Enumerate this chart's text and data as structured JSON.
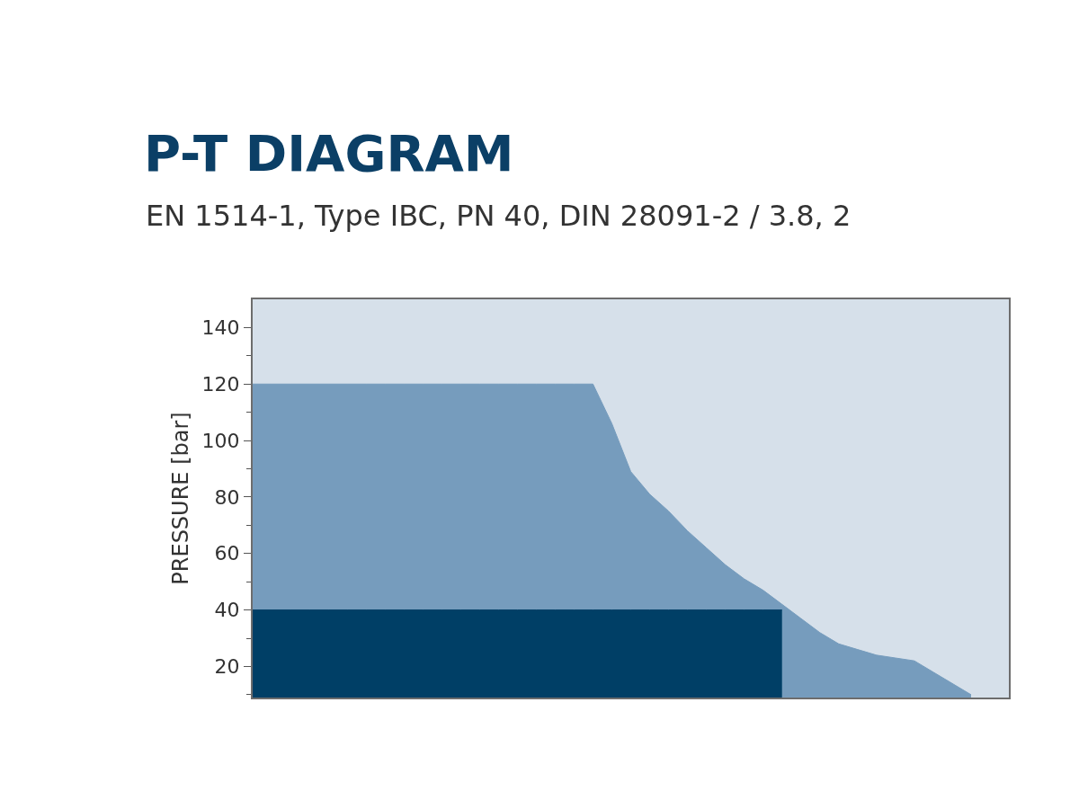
{
  "chart_data": {
    "type": "area",
    "title": "P-T DIAGRAM",
    "subtitle": "EN 1514-1, Type IBC, PN 40, DIN 28091-2 / 3.8, 2",
    "ylabel": "PRESSURE [bar]",
    "categories": [
      null,
      null,
      null,
      null,
      null,
      null,
      null,
      null,
      null,
      null,
      null,
      null,
      null,
      null,
      null,
      null,
      null,
      null,
      null,
      null,
      null,
      null,
      null,
      null,
      null,
      null,
      null,
      null,
      null,
      null,
      null,
      null,
      null,
      null,
      null,
      null,
      null,
      null,
      null,
      null,
      null
    ],
    "series": [
      {
        "color": "#769cbd",
        "values": [
          120,
          120,
          120,
          120,
          120,
          120,
          120,
          120,
          120,
          120,
          120,
          120,
          120,
          120,
          120,
          120,
          120,
          120,
          120,
          106,
          89,
          81,
          75,
          68,
          62,
          56,
          51,
          47,
          42,
          37,
          32,
          28,
          26,
          24,
          23,
          22,
          18,
          14,
          10,
          null,
          null
        ]
      },
      {
        "color": "#003f66",
        "values": [
          40,
          40,
          40,
          40,
          40,
          40,
          40,
          40,
          40,
          40,
          40,
          40,
          40,
          40,
          40,
          40,
          40,
          40,
          40,
          40,
          40,
          40,
          40,
          40,
          40,
          40,
          40,
          40,
          40,
          null,
          null,
          null,
          null,
          null,
          null,
          null,
          null,
          null,
          null,
          null,
          null
        ]
      }
    ],
    "ylim": [
      9,
      150
    ],
    "yticks": [
      {
        "value": 10,
        "label": null
      },
      20,
      {
        "value": 30,
        "label": null
      },
      40,
      {
        "value": 50,
        "label": null
      },
      60,
      {
        "value": 70,
        "label": null
      },
      80,
      {
        "value": 90,
        "label": null
      },
      100,
      {
        "value": 110,
        "label": null
      },
      120,
      {
        "value": 130,
        "label": null
      },
      140
    ],
    "tick_labels": "y",
    "grid": false
  }
}
